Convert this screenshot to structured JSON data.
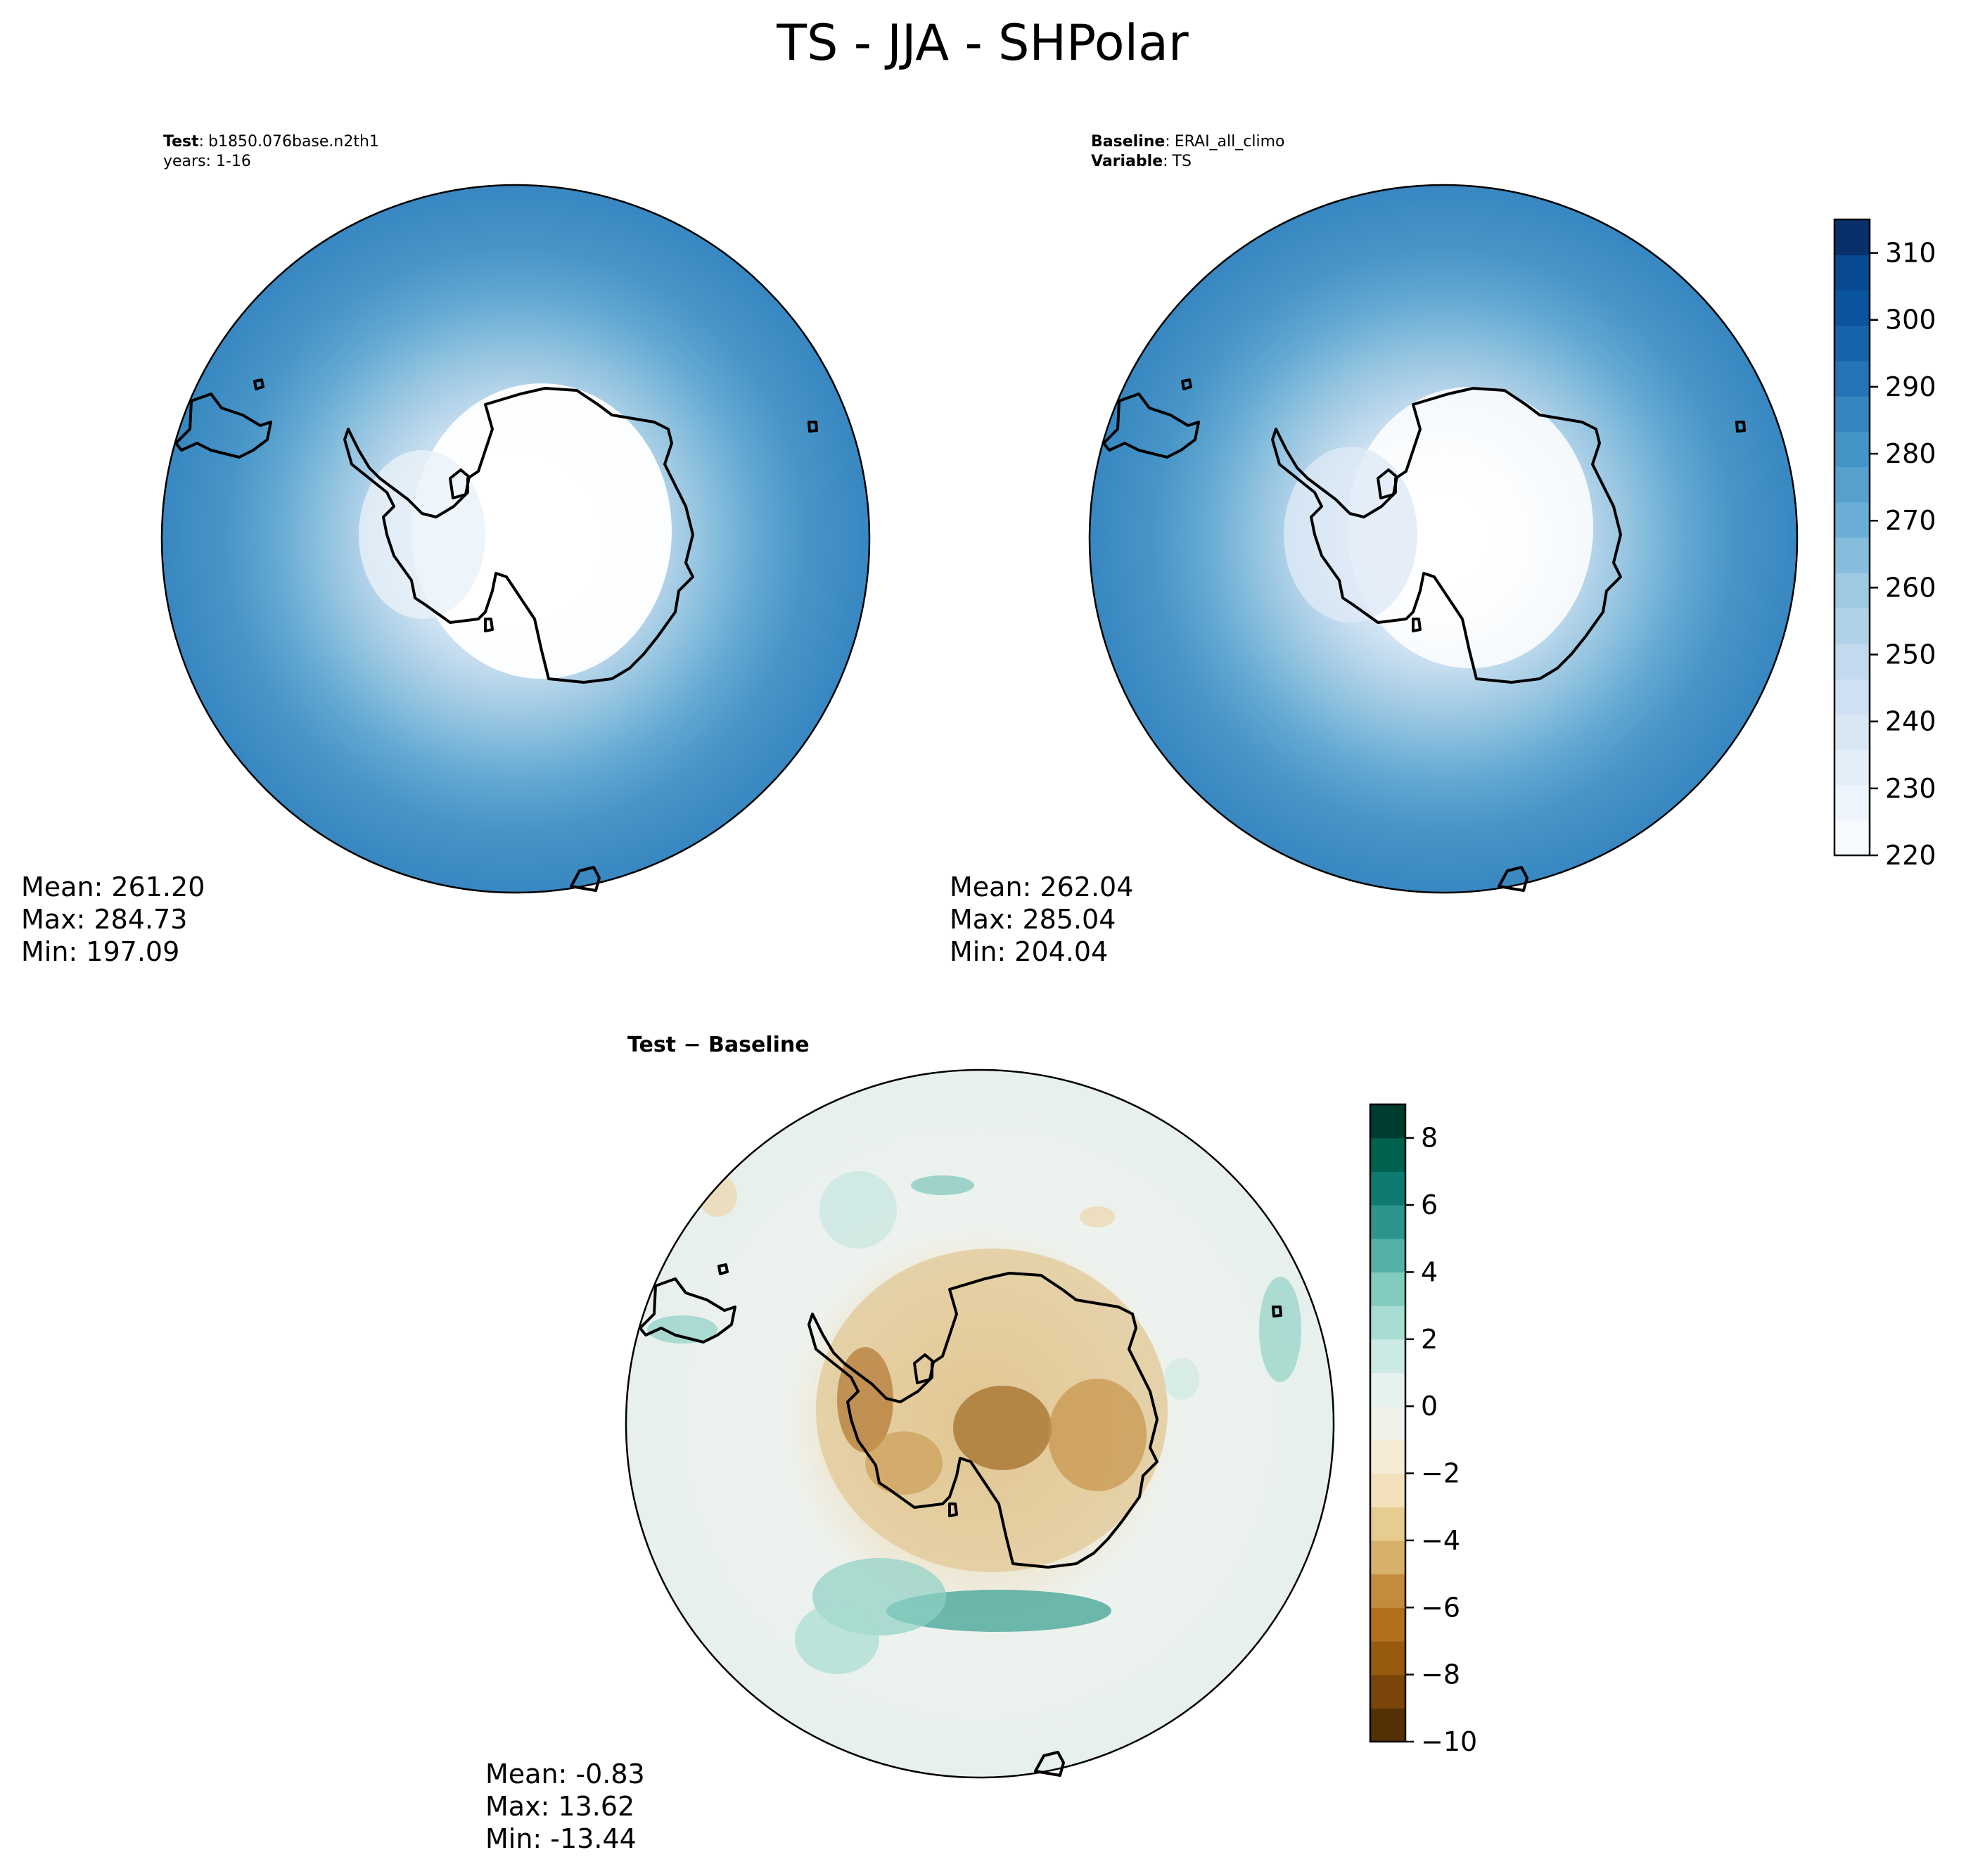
{
  "suptitle": "TS - JJA - SHPolar",
  "panels": [
    {
      "id": "test",
      "label_bold": "Test",
      "label_sep": ":",
      "label_value": "b1850.076base.n2th1",
      "line2": "years: 1-16",
      "stats": {
        "mean": "Mean: 261.20",
        "max": "Max: 284.73",
        "min": "Min: 197.09"
      }
    },
    {
      "id": "baseline",
      "label_bold": "Baseline",
      "label_sep": ":",
      "label_value": "ERAI_all_climo",
      "line2_bold": "Variable",
      "line2_sep": ":",
      "line2_value": "TS",
      "stats": {
        "mean": "Mean: 262.04",
        "max": "Max: 285.04",
        "min": "Min: 204.04"
      }
    },
    {
      "id": "diff",
      "title": "Test − Baseline",
      "stats": {
        "mean": "Mean: -0.83",
        "max": "Max: 13.62",
        "min": "Min: -13.44"
      }
    }
  ],
  "colorbars": {
    "ts": {
      "ticks": [
        "220",
        "230",
        "240",
        "250",
        "260",
        "270",
        "280",
        "290",
        "300",
        "310"
      ],
      "range": [
        220,
        315
      ],
      "colors": [
        "#f7fbff",
        "#eef5fc",
        "#e3eef9",
        "#d9e7f5",
        "#cee0f2",
        "#c2d9ee",
        "#b0d2e8",
        "#9ecae1",
        "#87bddc",
        "#6aaed6",
        "#58a1cf",
        "#4594c7",
        "#3585c0",
        "#2474b7",
        "#1764ab",
        "#0b559f",
        "#084a91",
        "#08306b"
      ]
    },
    "diff": {
      "ticks": [
        "−10",
        "−8",
        "−6",
        "−4",
        "−2",
        "0",
        "2",
        "4",
        "6",
        "8"
      ],
      "range": [
        -10,
        9
      ],
      "colors": [
        "#543005",
        "#7a4509",
        "#985a0d",
        "#b36f1a",
        "#c48b3e",
        "#d7b06a",
        "#e6cc8f",
        "#f2e1bb",
        "#f6ecd6",
        "#f1f1ea",
        "#e6f2f0",
        "#cceae5",
        "#a8ddd3",
        "#81cbbf",
        "#55b1a6",
        "#2d958b",
        "#0e7a6f",
        "#00614f",
        "#003c30"
      ]
    }
  },
  "chart_data": [
    {
      "type": "heatmap",
      "title": "Test: b1850.076base.n2th1",
      "subtitle": "years: 1-16",
      "projection": "south polar stereographic",
      "colormap": "Blues",
      "colorbar_range": [
        220,
        315
      ],
      "colorbar_ticks": [
        220,
        230,
        240,
        250,
        260,
        270,
        280,
        290,
        300,
        310
      ],
      "mean": 261.2,
      "max": 284.73,
      "min": 197.09
    },
    {
      "type": "heatmap",
      "title": "Baseline: ERAI_all_climo",
      "subtitle": "Variable: TS",
      "projection": "south polar stereographic",
      "colormap": "Blues",
      "colorbar_range": [
        220,
        315
      ],
      "colorbar_ticks": [
        220,
        230,
        240,
        250,
        260,
        270,
        280,
        290,
        300,
        310
      ],
      "mean": 262.04,
      "max": 285.04,
      "min": 204.04
    },
    {
      "type": "heatmap",
      "title": "Test − Baseline",
      "projection": "south polar stereographic",
      "colormap": "BrBG",
      "colorbar_range": [
        -10,
        9
      ],
      "colorbar_ticks": [
        -10,
        -8,
        -6,
        -4,
        -2,
        0,
        2,
        4,
        6,
        8
      ],
      "mean": -0.83,
      "max": 13.62,
      "min": -13.44
    }
  ]
}
